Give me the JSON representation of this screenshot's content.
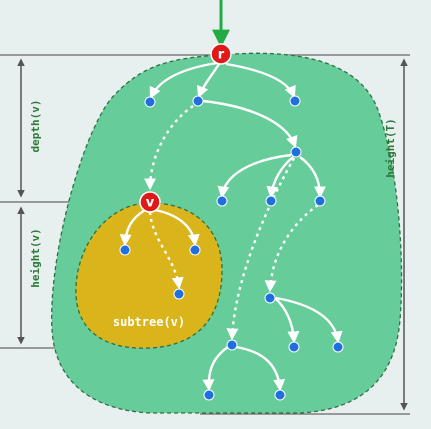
{
  "labels": {
    "root": "r",
    "node_v": "v",
    "subtree": "subtree(v)",
    "depth": "depth(v)",
    "height_v": "height(v)",
    "height_T": "height(T)"
  },
  "colors": {
    "background": "#e8f0ef",
    "tree_fill": "#66cc99",
    "subtree_fill": "#d9b41a",
    "highlight_node": "#e01818",
    "node": "#1f6fe0",
    "edge": "#ffffff",
    "label_text": "#2d7a3a",
    "input_arrow": "#22aa44",
    "measure_line": "#666666"
  }
}
